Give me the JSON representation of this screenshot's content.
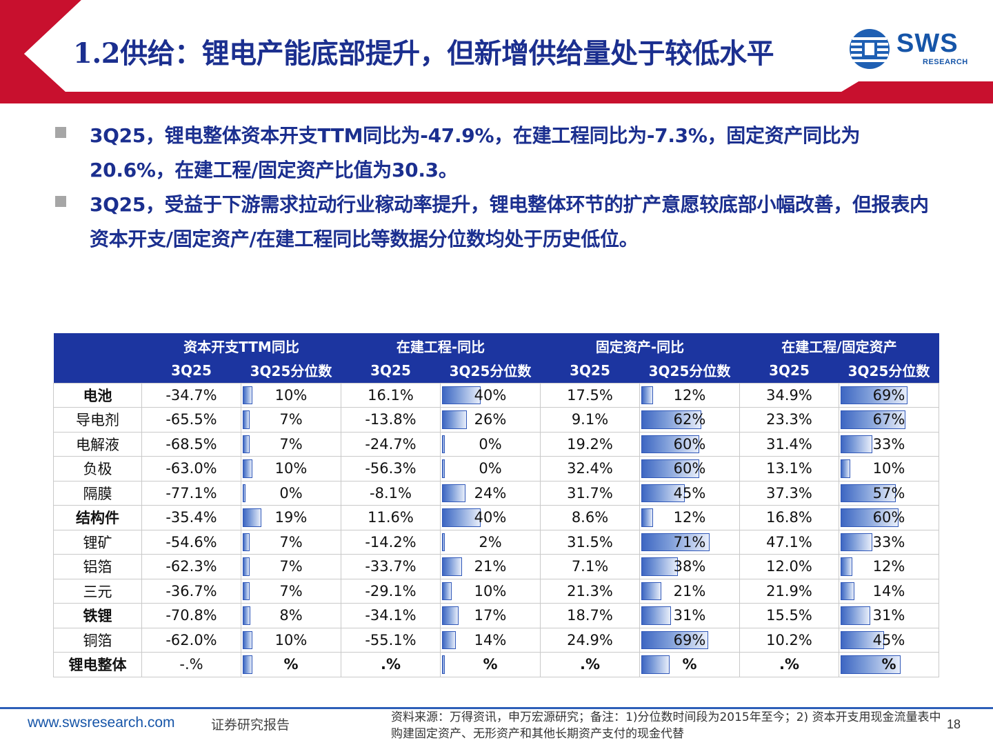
{
  "header": {
    "title": "1.2供给：锂电产能底部提升，但新增供给量处于较低水平",
    "logo_text": "SWS",
    "logo_sub": "RESEARCH",
    "accent_color": "#c8102e",
    "title_color": "#1b2f8f"
  },
  "bullets": [
    {
      "text": "3Q25，锂电整体资本开支TTM同比为-47.9%，在建工程同比为-7.3%，固定资产同比为20.6%，在建工程/固定资产比值为30.3。"
    },
    {
      "text": "3Q25，受益于下游需求拉动行业稼动率提升，锂电整体环节的扩产意愿较底部小幅改善，但报表内资本开支/固定资产/在建工程同比等数据分位数均处于历史低位。"
    }
  ],
  "table": {
    "group_headers": [
      "资本开支TTM同比",
      "在建工程-同比",
      "固定资产-同比",
      "在建工程/固定资产"
    ],
    "sub_headers": [
      "3Q25",
      "3Q25分位数",
      "3Q25",
      "3Q25分位数",
      "3Q25",
      "3Q25分位数",
      "3Q25",
      "3Q25分位数"
    ],
    "header_color": "#1c35a0",
    "rows": [
      {
        "name": "电池",
        "style": "bold",
        "cells": [
          "-34.7%",
          "10%",
          "16.1%",
          "40%",
          "17.5%",
          "12%",
          "34.9%",
          "69%"
        ],
        "pct": [
          10,
          40,
          12,
          69
        ]
      },
      {
        "name": "导电剂",
        "style": "normal",
        "cells": [
          "-65.5%",
          "7%",
          "-13.8%",
          "26%",
          "9.1%",
          "62%",
          "23.3%",
          "67%"
        ],
        "pct": [
          7,
          26,
          62,
          67
        ]
      },
      {
        "name": "电解液",
        "style": "normal",
        "cells": [
          "-68.5%",
          "7%",
          "-24.7%",
          "0%",
          "19.2%",
          "60%",
          "31.4%",
          "33%"
        ],
        "pct": [
          7,
          0,
          60,
          33
        ]
      },
      {
        "name": "负极",
        "style": "normal",
        "cells": [
          "-63.0%",
          "10%",
          "-56.3%",
          "0%",
          "32.4%",
          "60%",
          "13.1%",
          "10%"
        ],
        "pct": [
          10,
          0,
          60,
          10
        ]
      },
      {
        "name": "隔膜",
        "style": "normal",
        "cells": [
          "-77.1%",
          "0%",
          "-8.1%",
          "24%",
          "31.7%",
          "45%",
          "37.3%",
          "57%"
        ],
        "pct": [
          0,
          24,
          45,
          57
        ]
      },
      {
        "name": "结构件",
        "style": "bold",
        "cells": [
          "-35.4%",
          "19%",
          "11.6%",
          "40%",
          "8.6%",
          "12%",
          "16.8%",
          "60%"
        ],
        "pct": [
          19,
          40,
          12,
          60
        ]
      },
      {
        "name": "锂矿",
        "style": "normal",
        "cells": [
          "-54.6%",
          "7%",
          "-14.2%",
          "2%",
          "31.5%",
          "71%",
          "47.1%",
          "33%"
        ],
        "pct": [
          7,
          2,
          71,
          33
        ]
      },
      {
        "name": "铝箔",
        "style": "normal",
        "cells": [
          "-62.3%",
          "7%",
          "-33.7%",
          "21%",
          "7.1%",
          "38%",
          "12.0%",
          "12%"
        ],
        "pct": [
          7,
          21,
          38,
          12
        ]
      },
      {
        "name": "三元",
        "style": "normal",
        "cells": [
          "-36.7%",
          "7%",
          "-29.1%",
          "10%",
          "21.3%",
          "21%",
          "21.9%",
          "14%"
        ],
        "pct": [
          7,
          10,
          21,
          14
        ]
      },
      {
        "name": "铁锂",
        "style": "bold",
        "cells": [
          "-70.8%",
          "8%",
          "-34.1%",
          "17%",
          "18.7%",
          "31%",
          "15.5%",
          "31%"
        ],
        "pct": [
          8,
          17,
          31,
          31
        ]
      },
      {
        "name": "铜箔",
        "style": "normal",
        "cells": [
          "-62.0%",
          "10%",
          "-55.1%",
          "14%",
          "24.9%",
          "69%",
          "10.2%",
          "45%"
        ],
        "pct": [
          10,
          14,
          69,
          45
        ]
      },
      {
        "name": "锂电整体",
        "style": "red",
        "cells": [
          "-.%",
          "%",
          ".%",
          "%",
          ".%",
          "%",
          ".%",
          "%"
        ],
        "pct": [
          10,
          2,
          29,
          62
        ]
      }
    ]
  },
  "footer": {
    "url": "www.swsresearch.com",
    "label": "证券研究报告",
    "source": "资料来源：万得资讯，申万宏源研究；备注：1)分位数时间段为2015年至今；2) 资本开支用现金流量表中购建固定资产、无形资产和其他长期资产支付的现金代替",
    "page": "18"
  }
}
